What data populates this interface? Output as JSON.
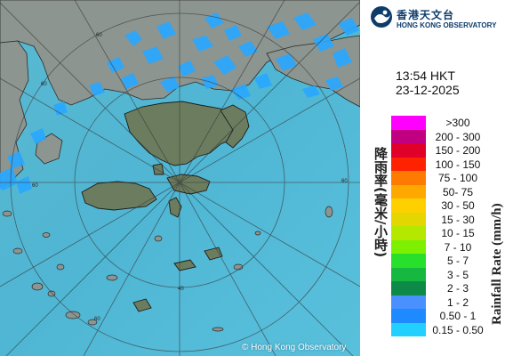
{
  "organization": {
    "name_zh": "香港天文台",
    "name_en": "HONG KONG OBSERVATORY"
  },
  "timestamp": {
    "time": "13:54 HKT",
    "date": "23-12-2025"
  },
  "legend": {
    "title_zh": "降雨率(毫米/小時)",
    "title_en": "Rainfall Rate (mm/h)",
    "bands": [
      {
        "label": ">300",
        "color": "#ff00ff"
      },
      {
        "label": "200 - 300",
        "color": "#c00080"
      },
      {
        "label": "150 - 200",
        "color": "#e0002a"
      },
      {
        "label": "100 - 150",
        "color": "#ff2200"
      },
      {
        "label": "75 - 100",
        "color": "#ff7a00"
      },
      {
        "label": "50- 75",
        "color": "#ffa800"
      },
      {
        "label": "30 - 50",
        "color": "#ffd000"
      },
      {
        "label": "15 - 30",
        "color": "#e4d600"
      },
      {
        "label": "10 - 15",
        "color": "#b4e800"
      },
      {
        "label": "7 - 10",
        "color": "#7df000"
      },
      {
        "label": "5 - 7",
        "color": "#28e02c"
      },
      {
        "label": "3 - 5",
        "color": "#16b840"
      },
      {
        "label": "2 - 3",
        "color": "#0e8a48"
      },
      {
        "label": "1 - 2",
        "color": "#4a90ff"
      },
      {
        "label": "0.50 - 1",
        "color": "#1e8aff"
      },
      {
        "label": "0.15 - 0.50",
        "color": "#22d0ff"
      }
    ]
  },
  "map": {
    "range_ring_labels": [
      "60",
      "60",
      "60",
      "60",
      "60",
      "40"
    ],
    "copyright": "© Hong Kong Observatory",
    "colors": {
      "sea": "#4fb6d4",
      "land": "#6e7d6a",
      "radar_echo": "#22aaff"
    }
  }
}
